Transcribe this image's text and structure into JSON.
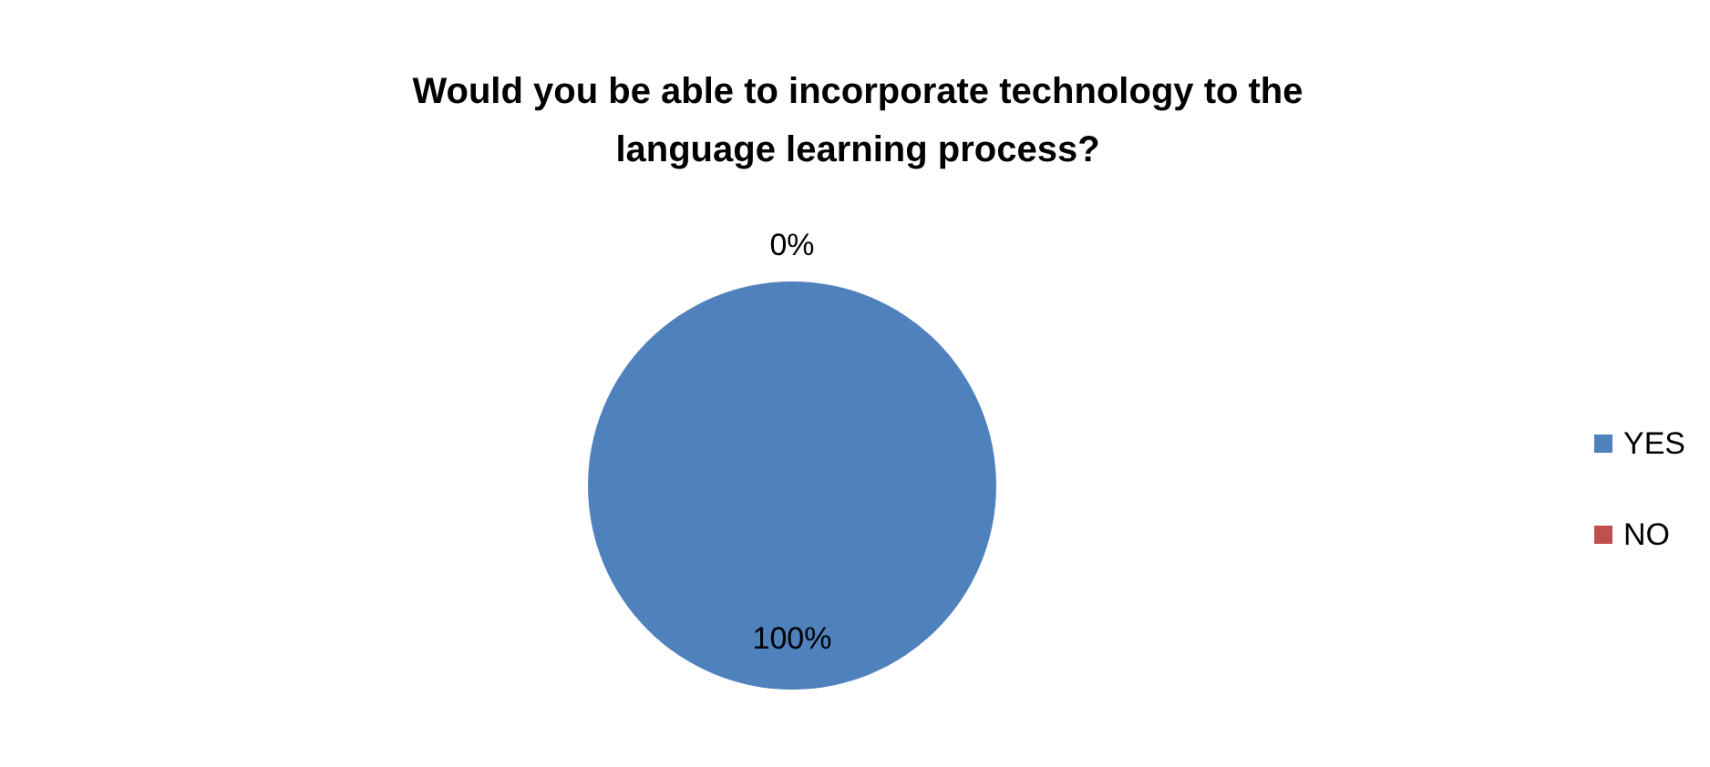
{
  "chart_data": {
    "type": "pie",
    "title": "Would you be able to incorporate technology to the language learning process?",
    "categories": [
      "YES",
      "NO"
    ],
    "values": [
      100,
      0
    ],
    "colors": [
      "#4f81bd",
      "#c0504d"
    ],
    "value_labels": [
      "100%",
      "0%"
    ],
    "legend": "right"
  }
}
